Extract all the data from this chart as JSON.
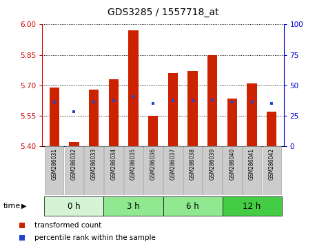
{
  "title": "GDS3285 / 1557718_at",
  "samples": [
    "GSM286031",
    "GSM286032",
    "GSM286033",
    "GSM286034",
    "GSM286035",
    "GSM286036",
    "GSM286037",
    "GSM286038",
    "GSM286039",
    "GSM286040",
    "GSM286041",
    "GSM286042"
  ],
  "transformed_counts": [
    5.69,
    5.42,
    5.68,
    5.73,
    5.97,
    5.55,
    5.76,
    5.77,
    5.85,
    5.635,
    5.71,
    5.57
  ],
  "percentile_values": [
    5.62,
    5.57,
    5.62,
    5.625,
    5.645,
    5.61,
    5.625,
    5.625,
    5.63,
    5.62,
    5.62,
    5.61
  ],
  "ylim_left": [
    5.4,
    6.0
  ],
  "ylim_right": [
    0,
    100
  ],
  "yticks_left": [
    5.4,
    5.55,
    5.7,
    5.85,
    6.0
  ],
  "yticks_right": [
    0,
    25,
    50,
    75,
    100
  ],
  "group_labels": [
    "0 h",
    "3 h",
    "6 h",
    "12 h"
  ],
  "group_colors": [
    "#d4f4d4",
    "#90e890",
    "#90e890",
    "#44cc44"
  ],
  "group_starts": [
    0,
    3,
    6,
    9
  ],
  "group_ends": [
    3,
    6,
    9,
    12
  ],
  "bar_color": "#cc2200",
  "blue_color": "#2244cc",
  "bar_bottom": 5.4,
  "legend_labels": [
    "transformed count",
    "percentile rank within the sample"
  ],
  "time_label": "time",
  "left_tick_color": "#cc0000",
  "right_tick_color": "#0000cc",
  "xtick_bg": "#cccccc",
  "bar_width": 0.5
}
